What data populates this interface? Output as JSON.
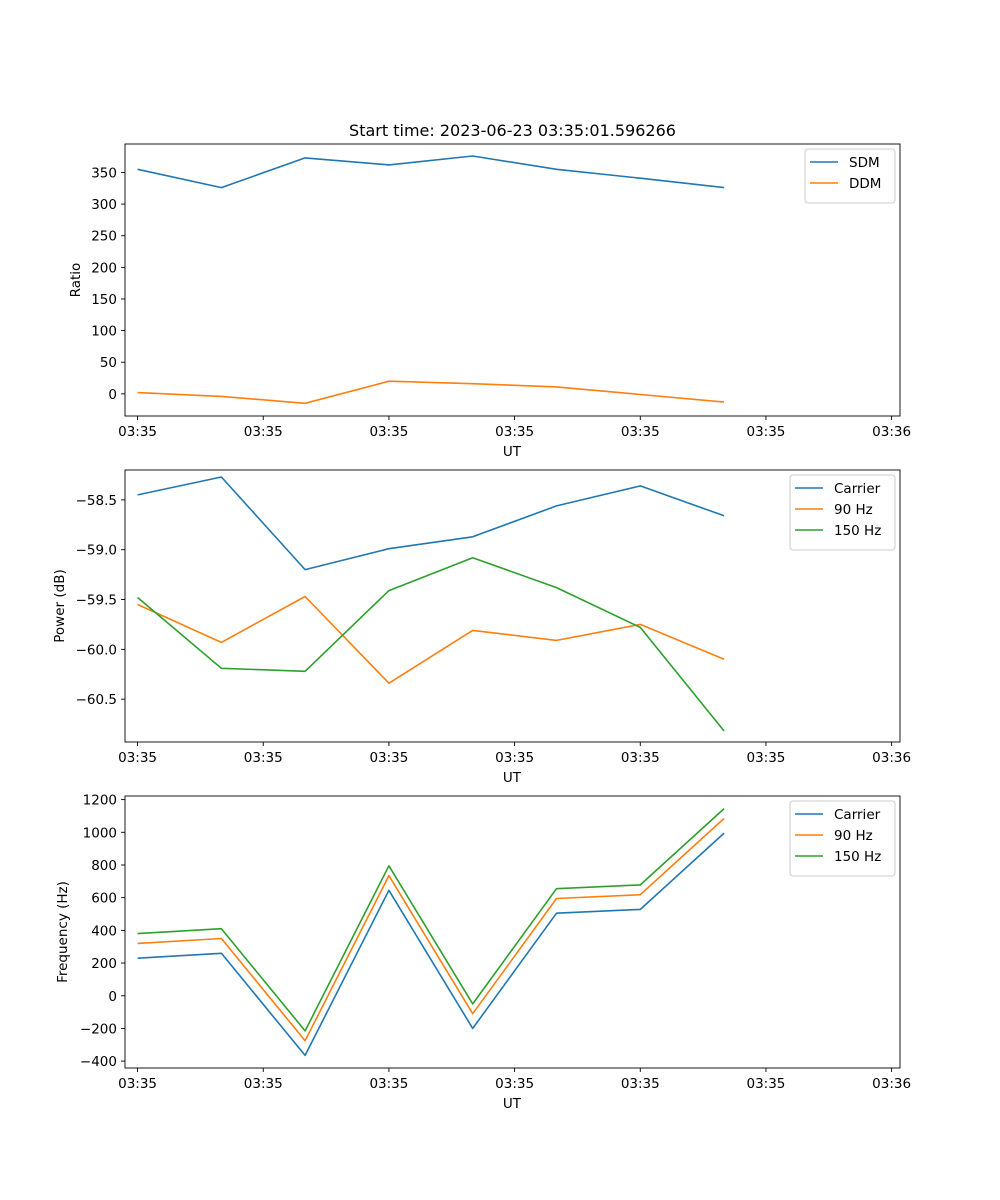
{
  "figure_title": "Start time: 2023-06-23 03:35:01.596266",
  "chart_data": [
    {
      "type": "line",
      "title": "Start time: 2023-06-23 03:35:01.596266",
      "xlabel": "UT",
      "ylabel": "Ratio",
      "x_tick_labels": [
        "03:35",
        "03:35",
        "03:35",
        "03:35",
        "03:35",
        "03:35",
        "03:36"
      ],
      "y_ticks": [
        "0",
        "50",
        "100",
        "150",
        "200",
        "250",
        "300",
        "350"
      ],
      "ylim": [
        -35,
        395
      ],
      "xlim": [
        -0.15,
        9.1
      ],
      "x": [
        0,
        1,
        2,
        3,
        4,
        5,
        6,
        7
      ],
      "series": [
        {
          "name": "SDM",
          "color": "#1f77b4",
          "values": [
            355,
            326,
            373,
            362,
            376,
            355,
            341,
            326
          ]
        },
        {
          "name": "DDM",
          "color": "#ff7f0e",
          "values": [
            2,
            -4,
            -15,
            20,
            16,
            11,
            -1,
            -13
          ]
        }
      ],
      "legend": "top-right",
      "grid": false
    },
    {
      "type": "line",
      "title": "",
      "xlabel": "UT",
      "ylabel": "Power (dB)",
      "x_tick_labels": [
        "03:35",
        "03:35",
        "03:35",
        "03:35",
        "03:35",
        "03:35",
        "03:36"
      ],
      "y_ticks": [
        "−60.5",
        "−60.0",
        "−59.5",
        "−59.0",
        "−58.5"
      ],
      "ylim": [
        -60.93,
        -58.2
      ],
      "xlim": [
        -0.15,
        9.1
      ],
      "x": [
        0,
        1,
        2,
        3,
        4,
        5,
        6,
        7
      ],
      "series": [
        {
          "name": "Carrier",
          "color": "#1f77b4",
          "values": [
            -58.45,
            -58.27,
            -59.2,
            -58.99,
            -58.87,
            -58.56,
            -58.36,
            -58.66
          ]
        },
        {
          "name": "90 Hz",
          "color": "#ff7f0e",
          "values": [
            -59.55,
            -59.93,
            -59.47,
            -60.34,
            -59.81,
            -59.91,
            -59.75,
            -60.1
          ]
        },
        {
          "name": "150 Hz",
          "color": "#2ca02c",
          "values": [
            -59.48,
            -60.19,
            -60.22,
            -59.41,
            -59.08,
            -59.38,
            -59.78,
            -60.82
          ]
        }
      ],
      "legend": "top-right",
      "grid": false
    },
    {
      "type": "line",
      "title": "",
      "xlabel": "UT",
      "ylabel": "Frequency (Hz)",
      "x_tick_labels": [
        "03:35",
        "03:35",
        "03:35",
        "03:35",
        "03:35",
        "03:35",
        "03:36"
      ],
      "y_ticks": [
        "−400",
        "−200",
        "0",
        "200",
        "400",
        "600",
        "800",
        "1000",
        "1200"
      ],
      "ylim": [
        -442,
        1222
      ],
      "xlim": [
        -0.15,
        9.1
      ],
      "x": [
        0,
        1,
        2,
        3,
        4,
        5,
        6,
        7
      ],
      "series": [
        {
          "name": "Carrier",
          "color": "#1f77b4",
          "values": [
            230,
            260,
            -365,
            645,
            -200,
            505,
            528,
            995
          ]
        },
        {
          "name": "90 Hz",
          "color": "#ff7f0e",
          "values": [
            320,
            350,
            -275,
            735,
            -110,
            595,
            618,
            1085
          ]
        },
        {
          "name": "150 Hz",
          "color": "#2ca02c",
          "values": [
            380,
            410,
            -215,
            795,
            -50,
            655,
            678,
            1145
          ]
        }
      ],
      "legend": "top-right",
      "grid": false
    }
  ]
}
